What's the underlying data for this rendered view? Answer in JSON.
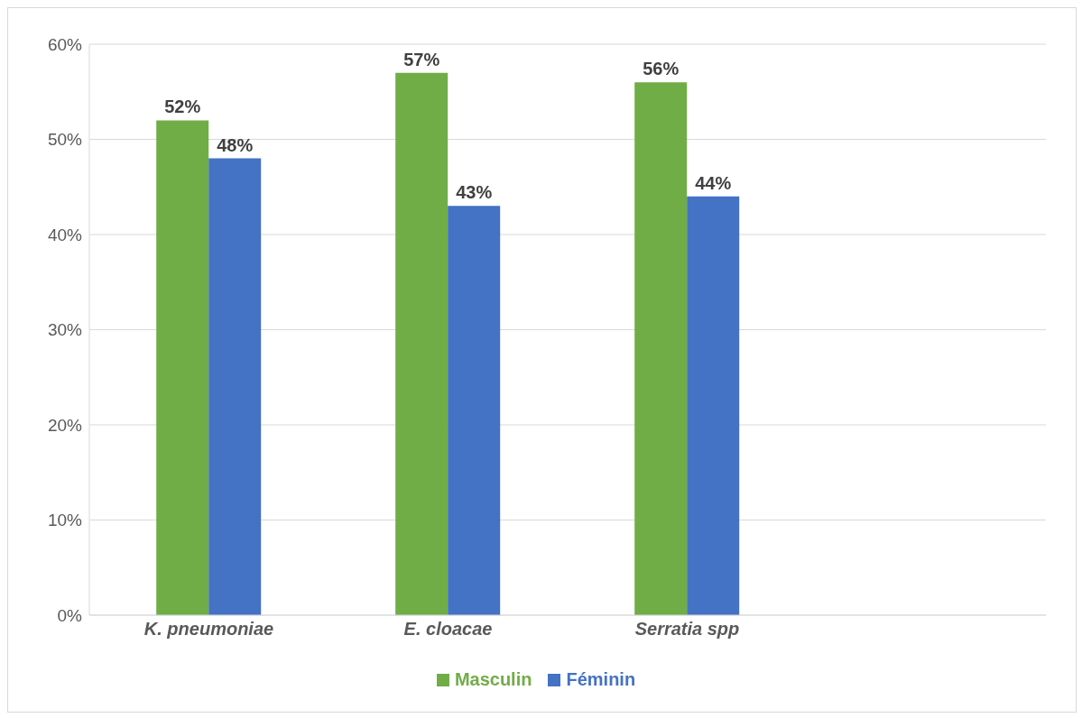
{
  "chart_data": {
    "type": "bar",
    "categories": [
      "K. pneumoniae",
      "E. cloacae",
      "Serratia spp",
      null
    ],
    "series": [
      {
        "name": "Masculin",
        "color": "#70ad47",
        "values": [
          52,
          57,
          56,
          null
        ],
        "value_labels": [
          "52%",
          "57%",
          "56%",
          null
        ]
      },
      {
        "name": "Féminin",
        "color": "#4472c4",
        "values": [
          48,
          43,
          44,
          null
        ],
        "value_labels": [
          "48%",
          "43%",
          "44%",
          null
        ]
      }
    ],
    "ylim": [
      0,
      60
    ],
    "yticks": [
      {
        "value": 0,
        "label": "0%"
      },
      {
        "value": 10,
        "label": "10%"
      },
      {
        "value": 20,
        "label": "20%"
      },
      {
        "value": 30,
        "label": "30%"
      },
      {
        "value": 40,
        "label": "40%"
      },
      {
        "value": 50,
        "label": "50%"
      },
      {
        "value": 60,
        "label": "60%"
      }
    ],
    "grid": "y",
    "legend": "bottom"
  }
}
